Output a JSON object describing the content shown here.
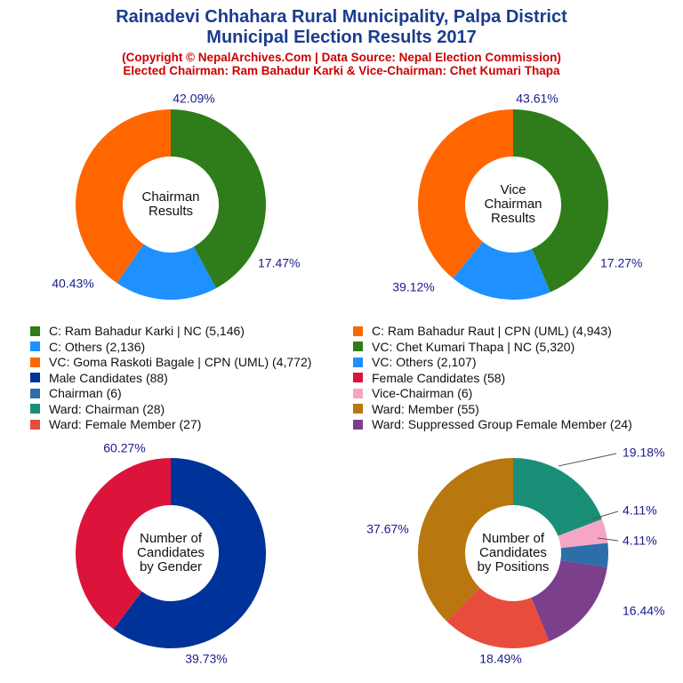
{
  "header": {
    "title_line1": "Rainadevi Chhahara Rural Municipality, Palpa District",
    "title_line2": "Municipal Election Results 2017",
    "copyright": "(Copyright © NepalArchives.Com | Data Source: Nepal Election Commission)",
    "elected": "Elected Chairman: Ram Bahadur Karki & Vice-Chairman: Chet Kumari Thapa"
  },
  "colors": {
    "nc_green": "#2e7d1a",
    "cpn_orange": "#ff6600",
    "others_blue": "#1e90ff",
    "male_navy": "#003399",
    "female_crimson": "#dc143c",
    "chairman_steel": "#2c6fa8",
    "vice_pink": "#f4a6c4",
    "ward_chair_teal": "#1a8f77",
    "ward_member_brown": "#b8770f",
    "ward_female_red": "#e84c3d",
    "ward_suppressed_purple": "#7b3f8c",
    "percent_text": "#1a1a8f"
  },
  "legend": [
    {
      "label": "C: Ram Bahadur Karki | NC (5,146)",
      "color": "#2e7d1a"
    },
    {
      "label": "C: Ram Bahadur Raut | CPN (UML) (4,943)",
      "color": "#ff6600"
    },
    {
      "label": "C: Others (2,136)",
      "color": "#1e90ff"
    },
    {
      "label": "VC: Chet Kumari Thapa | NC (5,320)",
      "color": "#2e7d1a"
    },
    {
      "label": "VC: Goma Raskoti Bagale | CPN (UML) (4,772)",
      "color": "#ff6600"
    },
    {
      "label": "VC: Others (2,107)",
      "color": "#1e90ff"
    },
    {
      "label": "Male Candidates (88)",
      "color": "#003399"
    },
    {
      "label": "Female Candidates (58)",
      "color": "#dc143c"
    },
    {
      "label": "Chairman (6)",
      "color": "#2c6fa8"
    },
    {
      "label": "Vice-Chairman (6)",
      "color": "#f4a6c4"
    },
    {
      "label": "Ward: Chairman (28)",
      "color": "#1a8f77"
    },
    {
      "label": "Ward: Member (55)",
      "color": "#b8770f"
    },
    {
      "label": "Ward: Female Member (27)",
      "color": "#e84c3d"
    },
    {
      "label": "Ward: Suppressed Group Female Member (24)",
      "color": "#7b3f8c"
    }
  ],
  "chart_data": [
    {
      "type": "pie",
      "center_label": [
        "Chairman",
        "Results"
      ],
      "slices": [
        {
          "name": "C: Ram Bahadur Karki | NC",
          "value": 5146,
          "percent": "42.09%",
          "color": "#2e7d1a"
        },
        {
          "name": "C: Others",
          "value": 2136,
          "percent": "17.47%",
          "color": "#1e90ff"
        },
        {
          "name": "C: Ram Bahadur Raut | CPN (UML)",
          "value": 4943,
          "percent": "40.43%",
          "color": "#ff6600"
        }
      ]
    },
    {
      "type": "pie",
      "center_label": [
        "Vice",
        "Chairman",
        "Results"
      ],
      "slices": [
        {
          "name": "VC: Chet Kumari Thapa | NC",
          "value": 5320,
          "percent": "43.61%",
          "color": "#2e7d1a"
        },
        {
          "name": "VC: Others",
          "value": 2107,
          "percent": "17.27%",
          "color": "#1e90ff"
        },
        {
          "name": "VC: Goma Raskoti Bagale | CPN (UML)",
          "value": 4772,
          "percent": "39.12%",
          "color": "#ff6600"
        }
      ]
    },
    {
      "type": "pie",
      "center_label": [
        "Number of",
        "Candidates",
        "by Gender"
      ],
      "slices": [
        {
          "name": "Male Candidates",
          "value": 88,
          "percent": "60.27%",
          "color": "#003399"
        },
        {
          "name": "Female Candidates",
          "value": 58,
          "percent": "39.73%",
          "color": "#dc143c"
        }
      ]
    },
    {
      "type": "pie",
      "center_label": [
        "Number of",
        "Candidates",
        "by Positions"
      ],
      "slices": [
        {
          "name": "Ward: Chairman",
          "value": 28,
          "percent": "19.18%",
          "color": "#1a8f77"
        },
        {
          "name": "Vice-Chairman",
          "value": 6,
          "percent": "4.11%",
          "color": "#f4a6c4"
        },
        {
          "name": "Chairman",
          "value": 6,
          "percent": "4.11%",
          "color": "#2c6fa8"
        },
        {
          "name": "Ward: Suppressed Group Female Member",
          "value": 24,
          "percent": "16.44%",
          "color": "#7b3f8c"
        },
        {
          "name": "Ward: Female Member",
          "value": 27,
          "percent": "18.49%",
          "color": "#e84c3d"
        },
        {
          "name": "Ward: Member",
          "value": 55,
          "percent": "37.67%",
          "color": "#b8770f"
        }
      ]
    }
  ]
}
